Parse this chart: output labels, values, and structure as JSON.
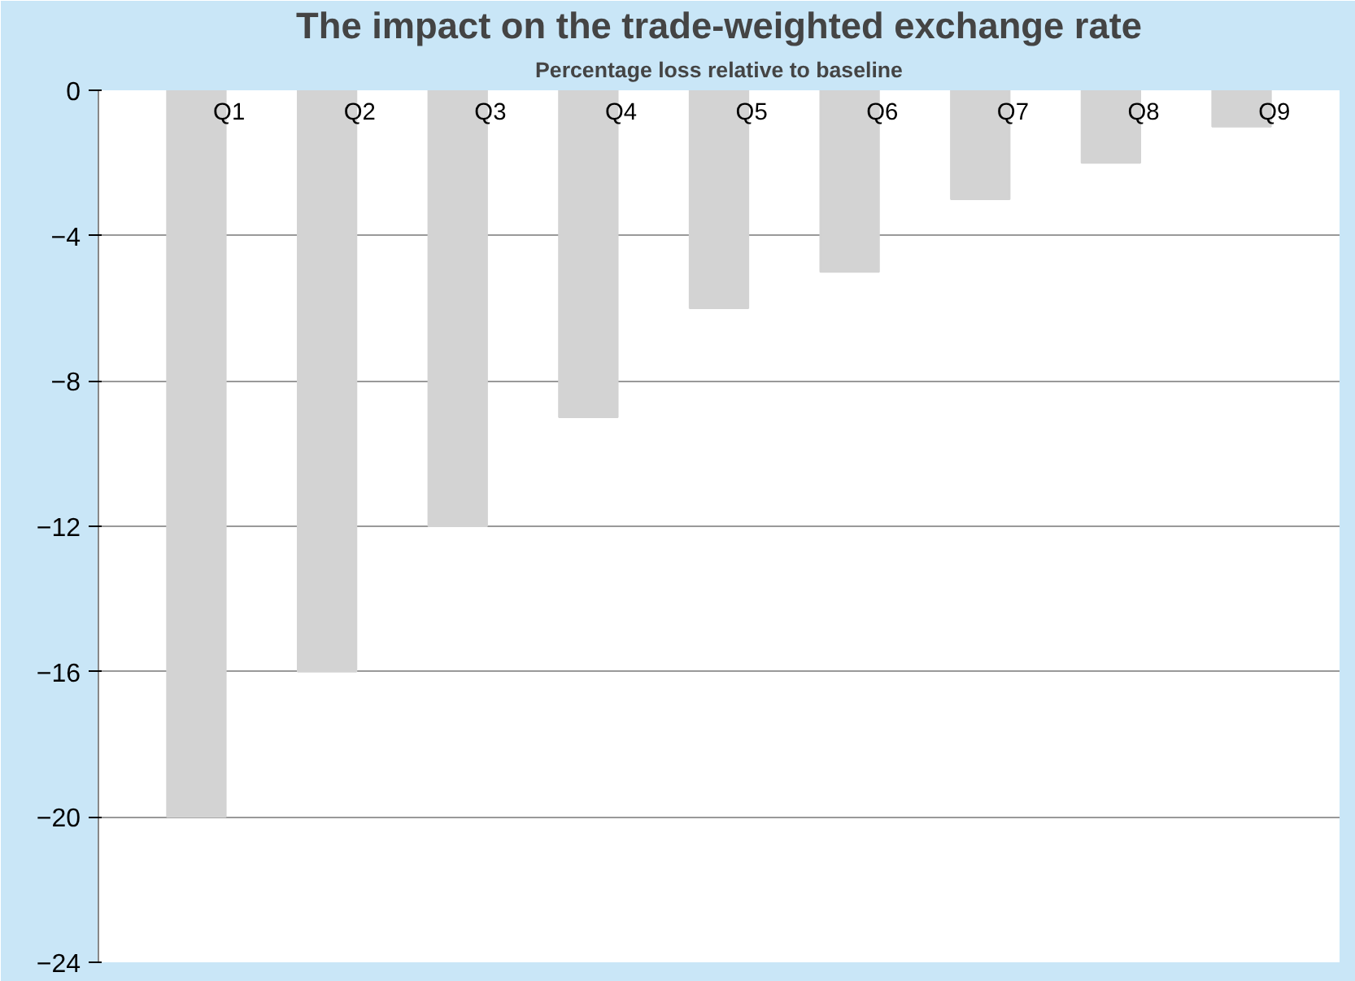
{
  "chart_data": {
    "type": "bar",
    "title": "The impact on the trade-weighted exchange rate",
    "subtitle": "Percentage loss relative to baseline",
    "categories": [
      "Q1",
      "Q2",
      "Q3",
      "Q4",
      "Q5",
      "Q6",
      "Q7",
      "Q8",
      "Q9"
    ],
    "values": [
      -20,
      -16,
      -12,
      -9,
      -6,
      -5,
      -3,
      -2,
      -1
    ],
    "color": "#d3d3d3",
    "ylim": [
      -24,
      0
    ],
    "yticks": [
      0,
      -4,
      -8,
      -12,
      -16,
      -20,
      -24
    ],
    "grid": "y"
  }
}
